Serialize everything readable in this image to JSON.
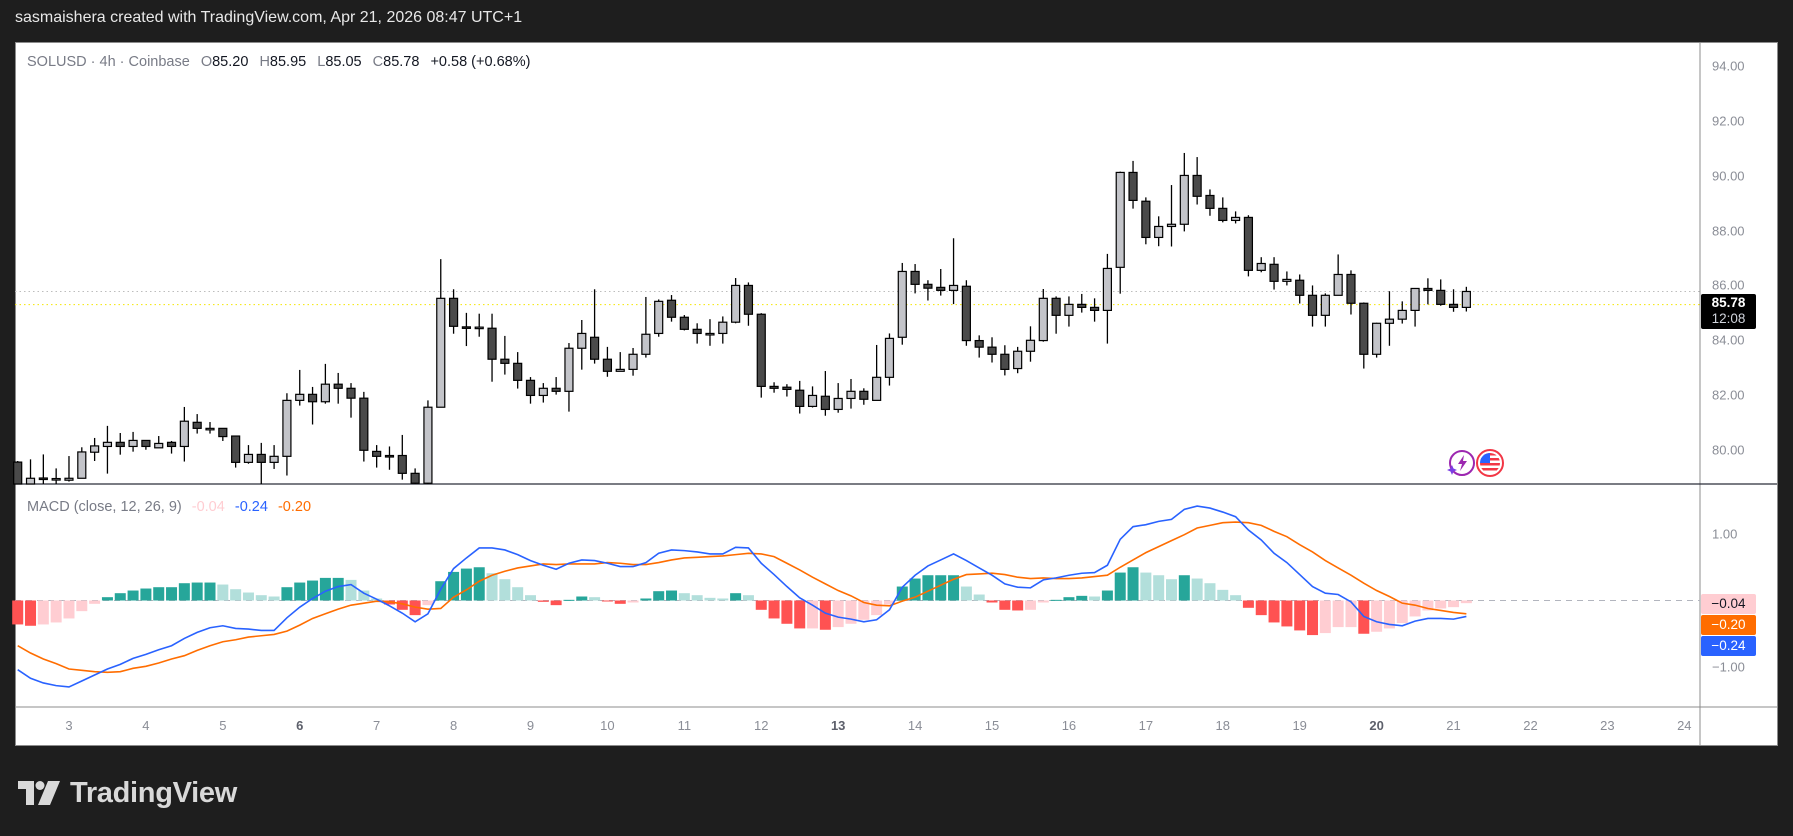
{
  "header": {
    "caption": "sasmaishera created with TradingView.com, Apr 21, 2026 08:47 UTC+1"
  },
  "legend": {
    "symbol": "SOLUSD · 4h · Coinbase",
    "open_label": "O",
    "open": "85.20",
    "high_label": "H",
    "high": "85.95",
    "low_label": "L",
    "low": "85.05",
    "close_label": "C",
    "close": "85.78",
    "change": "+0.58 (+0.68%)"
  },
  "last_price": {
    "price": "85.78",
    "countdown": "12:08"
  },
  "macd_legend": {
    "title": "MACD (close, 12, 26, 9)",
    "histogram": "-0.04",
    "macd": "-0.24",
    "signal": "-0.20"
  },
  "macd_tags": {
    "histogram": "−0.04",
    "signal": "−0.20",
    "macd": "−0.24"
  },
  "price_axis": {
    "ticks": [
      "94.00",
      "92.00",
      "90.00",
      "88.00",
      "86.00",
      "84.00",
      "82.00",
      "80.00"
    ]
  },
  "macd_axis": {
    "ticks": [
      "1.00",
      "−1.00"
    ]
  },
  "time_axis": {
    "ticks": [
      {
        "label": "3",
        "bold": false
      },
      {
        "label": "4",
        "bold": false
      },
      {
        "label": "5",
        "bold": false
      },
      {
        "label": "6",
        "bold": true
      },
      {
        "label": "7",
        "bold": false
      },
      {
        "label": "8",
        "bold": false
      },
      {
        "label": "9",
        "bold": false
      },
      {
        "label": "10",
        "bold": false
      },
      {
        "label": "11",
        "bold": false
      },
      {
        "label": "12",
        "bold": false
      },
      {
        "label": "13",
        "bold": true
      },
      {
        "label": "14",
        "bold": false
      },
      {
        "label": "15",
        "bold": false
      },
      {
        "label": "16",
        "bold": false
      },
      {
        "label": "17",
        "bold": false
      },
      {
        "label": "18",
        "bold": false
      },
      {
        "label": "19",
        "bold": false
      },
      {
        "label": "20",
        "bold": true
      },
      {
        "label": "21",
        "bold": false
      },
      {
        "label": "22",
        "bold": false
      },
      {
        "label": "23",
        "bold": false
      },
      {
        "label": "24",
        "bold": false
      }
    ]
  },
  "logo": {
    "text": "TradingView"
  },
  "icons": [
    "lightning-icon",
    "us-flag-icon"
  ],
  "colors": {
    "bull_body": "#c3c4c9",
    "bear_body": "#4a4a4a",
    "wick": "#000000",
    "macd_line": "#2962ff",
    "signal_line": "#ff6d00",
    "hist_up_strong": "#26a69a",
    "hist_up_weak": "#b2dfdb",
    "hist_down_strong": "#ff5252",
    "hist_down_weak": "#ffcdd2",
    "last_price_line": "#bdbdbd",
    "price_line": "#f5e600"
  },
  "chart_data": [
    {
      "type": "candlestick",
      "title": "SOLUSD · 4h · Coinbase",
      "ylim": [
        78.7,
        94.6
      ],
      "price_lines": {
        "last": 85.78,
        "yellow": 85.3
      },
      "x_first_day_tick_candle": 4,
      "candles_per_day": 6,
      "ohlc": [
        [
          79.56,
          79.6,
          78.7,
          78.75
        ],
        [
          78.72,
          79.66,
          78.7,
          78.97
        ],
        [
          78.98,
          79.84,
          78.72,
          78.95
        ],
        [
          78.94,
          79.33,
          78.72,
          78.96
        ],
        [
          78.9,
          79.78,
          78.85,
          78.97
        ],
        [
          78.97,
          80.1,
          78.97,
          79.93
        ],
        [
          79.92,
          80.44,
          79.6,
          80.15
        ],
        [
          80.13,
          80.88,
          79.14,
          80.28
        ],
        [
          80.28,
          80.62,
          79.83,
          80.13
        ],
        [
          80.13,
          80.66,
          79.94,
          80.35
        ],
        [
          80.35,
          80.35,
          80.01,
          80.13
        ],
        [
          80.08,
          80.51,
          80.08,
          80.24
        ],
        [
          80.28,
          80.33,
          79.87,
          80.13
        ],
        [
          80.13,
          81.57,
          79.58,
          81.05
        ],
        [
          81.01,
          81.31,
          80.6,
          80.79
        ],
        [
          80.79,
          81.02,
          80.6,
          80.79
        ],
        [
          80.79,
          80.79,
          80.33,
          80.49
        ],
        [
          80.51,
          80.51,
          79.36,
          79.55
        ],
        [
          79.55,
          80.18,
          79.5,
          79.84
        ],
        [
          79.84,
          80.26,
          78.72,
          79.55
        ],
        [
          79.55,
          80.18,
          79.31,
          79.77
        ],
        [
          79.77,
          82.07,
          79.07,
          81.81
        ],
        [
          81.81,
          82.92,
          81.62,
          82.03
        ],
        [
          82.03,
          82.3,
          80.93,
          81.76
        ],
        [
          81.76,
          83.14,
          81.69,
          82.4
        ],
        [
          82.4,
          82.81,
          81.69,
          82.25
        ],
        [
          82.25,
          82.44,
          81.18,
          81.89
        ],
        [
          81.89,
          82.12,
          79.58,
          79.99
        ],
        [
          79.95,
          80.18,
          79.36,
          79.77
        ],
        [
          79.8,
          80.13,
          79.28,
          79.78
        ],
        [
          79.8,
          80.55,
          78.92,
          79.15
        ],
        [
          79.15,
          79.33,
          78.72,
          78.79
        ],
        [
          78.79,
          81.81,
          78.72,
          81.56
        ],
        [
          81.56,
          86.96,
          81.56,
          85.53
        ],
        [
          85.53,
          85.86,
          84.24,
          84.51
        ],
        [
          84.49,
          85.0,
          83.79,
          84.48
        ],
        [
          84.48,
          84.97,
          84.13,
          84.48
        ],
        [
          84.44,
          84.97,
          82.49,
          83.31
        ],
        [
          83.31,
          84.16,
          82.75,
          83.16
        ],
        [
          83.16,
          83.57,
          82.24,
          82.54
        ],
        [
          82.54,
          82.66,
          81.69,
          81.99
        ],
        [
          81.99,
          82.44,
          81.73,
          82.25
        ],
        [
          82.25,
          82.66,
          82.02,
          82.14
        ],
        [
          82.14,
          83.9,
          81.4,
          83.71
        ],
        [
          83.71,
          84.74,
          82.93,
          84.25
        ],
        [
          84.11,
          85.86,
          83.15,
          83.31
        ],
        [
          83.31,
          83.76,
          82.67,
          82.87
        ],
        [
          82.87,
          83.57,
          82.87,
          82.94
        ],
        [
          82.94,
          83.72,
          82.71,
          83.49
        ],
        [
          83.49,
          85.58,
          83.37,
          84.22
        ],
        [
          84.25,
          85.49,
          84.13,
          85.42
        ],
        [
          85.46,
          85.65,
          84.68,
          84.84
        ],
        [
          84.84,
          84.92,
          84.36,
          84.4
        ],
        [
          84.4,
          84.62,
          83.88,
          84.25
        ],
        [
          84.25,
          84.77,
          83.8,
          84.25
        ],
        [
          84.25,
          84.87,
          83.88,
          84.66
        ],
        [
          84.66,
          86.27,
          84.62,
          86.0
        ],
        [
          86.0,
          86.11,
          84.53,
          84.95
        ],
        [
          84.95,
          84.99,
          81.91,
          82.32
        ],
        [
          82.32,
          82.47,
          82.09,
          82.25
        ],
        [
          82.29,
          82.4,
          81.95,
          82.21
        ],
        [
          82.18,
          82.52,
          81.33,
          81.59
        ],
        [
          81.59,
          82.32,
          81.55,
          81.99
        ],
        [
          81.96,
          82.88,
          81.25,
          81.48
        ],
        [
          81.48,
          82.44,
          81.36,
          81.88
        ],
        [
          81.88,
          82.59,
          81.51,
          82.14
        ],
        [
          82.14,
          82.25,
          81.65,
          81.85
        ],
        [
          81.81,
          83.83,
          81.81,
          82.65
        ],
        [
          82.65,
          84.25,
          82.35,
          84.07
        ],
        [
          84.11,
          86.82,
          83.84,
          86.51
        ],
        [
          86.51,
          86.78,
          85.71,
          86.04
        ],
        [
          86.04,
          86.19,
          85.45,
          85.9
        ],
        [
          85.93,
          86.6,
          85.63,
          85.82
        ],
        [
          85.82,
          87.72,
          85.32,
          86.0
        ],
        [
          85.97,
          86.19,
          83.8,
          83.99
        ],
        [
          83.99,
          84.18,
          83.37,
          83.75
        ],
        [
          83.75,
          84.11,
          83.19,
          83.49
        ],
        [
          83.49,
          83.82,
          82.72,
          82.94
        ],
        [
          82.97,
          83.76,
          82.8,
          83.6
        ],
        [
          83.6,
          84.51,
          83.22,
          84.0
        ],
        [
          83.99,
          85.87,
          83.95,
          85.53
        ],
        [
          85.53,
          85.6,
          84.24,
          84.91
        ],
        [
          84.91,
          85.6,
          84.5,
          85.31
        ],
        [
          85.31,
          85.69,
          85.01,
          85.2
        ],
        [
          85.2,
          85.53,
          84.68,
          85.09
        ],
        [
          85.09,
          87.15,
          83.88,
          86.62
        ],
        [
          86.66,
          90.15,
          85.7,
          90.12
        ],
        [
          90.12,
          90.54,
          88.8,
          89.1
        ],
        [
          89.07,
          89.21,
          87.5,
          87.75
        ],
        [
          87.75,
          88.52,
          87.43,
          88.15
        ],
        [
          88.15,
          89.66,
          87.42,
          88.23
        ],
        [
          88.23,
          90.83,
          87.97,
          90.01
        ],
        [
          90.01,
          90.68,
          88.95,
          89.25
        ],
        [
          89.28,
          89.5,
          88.54,
          88.81
        ],
        [
          88.81,
          89.21,
          88.3,
          88.37
        ],
        [
          88.37,
          88.7,
          88.26,
          88.48
        ],
        [
          88.48,
          88.56,
          86.33,
          86.55
        ],
        [
          86.55,
          87.03,
          86.48,
          86.8
        ],
        [
          86.77,
          87.03,
          85.85,
          86.15
        ],
        [
          86.15,
          86.51,
          86.0,
          86.22
        ],
        [
          86.19,
          86.4,
          85.34,
          85.64
        ],
        [
          85.64,
          86.0,
          84.5,
          84.91
        ],
        [
          84.91,
          85.71,
          84.5,
          85.64
        ],
        [
          85.64,
          87.13,
          85.64,
          86.4
        ],
        [
          86.4,
          86.55,
          84.94,
          85.35
        ],
        [
          85.35,
          85.38,
          82.97,
          83.49
        ],
        [
          83.49,
          84.64,
          83.37,
          84.62
        ],
        [
          84.62,
          85.79,
          83.8,
          84.77
        ],
        [
          84.77,
          85.42,
          84.61,
          85.09
        ],
        [
          85.09,
          85.89,
          84.5,
          85.89
        ],
        [
          85.89,
          86.26,
          85.31,
          85.82
        ],
        [
          85.82,
          86.22,
          85.26,
          85.31
        ],
        [
          85.31,
          85.86,
          85.04,
          85.2
        ],
        [
          85.2,
          85.95,
          85.05,
          85.78
        ]
      ]
    },
    {
      "type": "macd",
      "title": "MACD (close, 12, 26, 9)",
      "ylim": [
        -1.55,
        1.75
      ],
      "macd": [
        -1.04,
        -1.17,
        -1.24,
        -1.28,
        -1.3,
        -1.21,
        -1.12,
        -1.03,
        -0.96,
        -0.87,
        -0.81,
        -0.74,
        -0.68,
        -0.57,
        -0.48,
        -0.41,
        -0.38,
        -0.42,
        -0.43,
        -0.45,
        -0.45,
        -0.26,
        -0.1,
        0.03,
        0.14,
        0.21,
        0.24,
        0.11,
        0.02,
        -0.08,
        -0.19,
        -0.32,
        -0.2,
        0.17,
        0.48,
        0.64,
        0.79,
        0.79,
        0.76,
        0.69,
        0.6,
        0.53,
        0.47,
        0.56,
        0.61,
        0.6,
        0.56,
        0.51,
        0.51,
        0.57,
        0.71,
        0.76,
        0.75,
        0.73,
        0.7,
        0.7,
        0.8,
        0.79,
        0.56,
        0.39,
        0.21,
        0.04,
        -0.07,
        -0.19,
        -0.25,
        -0.28,
        -0.32,
        -0.29,
        -0.14,
        0.2,
        0.38,
        0.52,
        0.61,
        0.7,
        0.6,
        0.49,
        0.38,
        0.25,
        0.2,
        0.19,
        0.31,
        0.34,
        0.38,
        0.41,
        0.42,
        0.53,
        0.92,
        1.11,
        1.14,
        1.19,
        1.22,
        1.37,
        1.42,
        1.39,
        1.33,
        1.26,
        1.06,
        0.91,
        0.71,
        0.57,
        0.39,
        0.21,
        0.11,
        0.09,
        -0.02,
        -0.24,
        -0.32,
        -0.36,
        -0.38,
        -0.31,
        -0.27,
        -0.27,
        -0.28,
        -0.24
      ],
      "signal": [
        -0.68,
        -0.79,
        -0.88,
        -0.95,
        -1.03,
        -1.05,
        -1.07,
        -1.08,
        -1.07,
        -1.02,
        -0.99,
        -0.94,
        -0.88,
        -0.83,
        -0.75,
        -0.68,
        -0.62,
        -0.59,
        -0.55,
        -0.53,
        -0.51,
        -0.46,
        -0.37,
        -0.27,
        -0.2,
        -0.13,
        -0.07,
        -0.04,
        -0.01,
        -0.02,
        -0.05,
        -0.1,
        -0.13,
        -0.12,
        0.05,
        0.16,
        0.29,
        0.38,
        0.44,
        0.49,
        0.52,
        0.55,
        0.54,
        0.55,
        0.55,
        0.55,
        0.57,
        0.56,
        0.54,
        0.54,
        0.57,
        0.61,
        0.64,
        0.65,
        0.66,
        0.67,
        0.69,
        0.71,
        0.7,
        0.66,
        0.56,
        0.46,
        0.35,
        0.25,
        0.15,
        0.07,
        -0.03,
        -0.07,
        -0.08,
        -0.01,
        0.05,
        0.14,
        0.23,
        0.32,
        0.39,
        0.4,
        0.41,
        0.39,
        0.35,
        0.33,
        0.34,
        0.33,
        0.33,
        0.34,
        0.36,
        0.38,
        0.5,
        0.61,
        0.72,
        0.81,
        0.9,
        0.99,
        1.09,
        1.13,
        1.17,
        1.18,
        1.17,
        1.13,
        1.04,
        0.96,
        0.84,
        0.73,
        0.6,
        0.49,
        0.38,
        0.26,
        0.15,
        0.06,
        -0.04,
        -0.07,
        -0.12,
        -0.15,
        -0.18,
        -0.2
      ],
      "histogram": [
        -0.36,
        -0.38,
        -0.36,
        -0.33,
        -0.27,
        -0.16,
        -0.05,
        0.05,
        0.11,
        0.15,
        0.18,
        0.2,
        0.2,
        0.26,
        0.27,
        0.27,
        0.24,
        0.17,
        0.12,
        0.08,
        0.06,
        0.2,
        0.27,
        0.3,
        0.34,
        0.34,
        0.31,
        0.15,
        0.03,
        -0.06,
        -0.14,
        -0.22,
        -0.07,
        0.29,
        0.43,
        0.48,
        0.5,
        0.41,
        0.32,
        0.2,
        0.08,
        -0.02,
        -0.07,
        0.01,
        0.06,
        0.05,
        -0.01,
        -0.05,
        -0.03,
        0.03,
        0.14,
        0.15,
        0.11,
        0.08,
        0.04,
        0.03,
        0.11,
        0.08,
        -0.14,
        -0.27,
        -0.35,
        -0.42,
        -0.42,
        -0.44,
        -0.4,
        -0.35,
        -0.29,
        -0.22,
        -0.06,
        0.21,
        0.33,
        0.38,
        0.38,
        0.38,
        0.21,
        0.09,
        -0.03,
        -0.14,
        -0.15,
        -0.14,
        -0.03,
        0.01,
        0.05,
        0.07,
        0.06,
        0.15,
        0.42,
        0.5,
        0.42,
        0.38,
        0.32,
        0.38,
        0.33,
        0.26,
        0.16,
        0.08,
        -0.11,
        -0.22,
        -0.33,
        -0.39,
        -0.45,
        -0.52,
        -0.49,
        -0.4,
        -0.4,
        -0.5,
        -0.47,
        -0.42,
        -0.34,
        -0.24,
        -0.15,
        -0.12,
        -0.1,
        -0.04
      ]
    }
  ]
}
